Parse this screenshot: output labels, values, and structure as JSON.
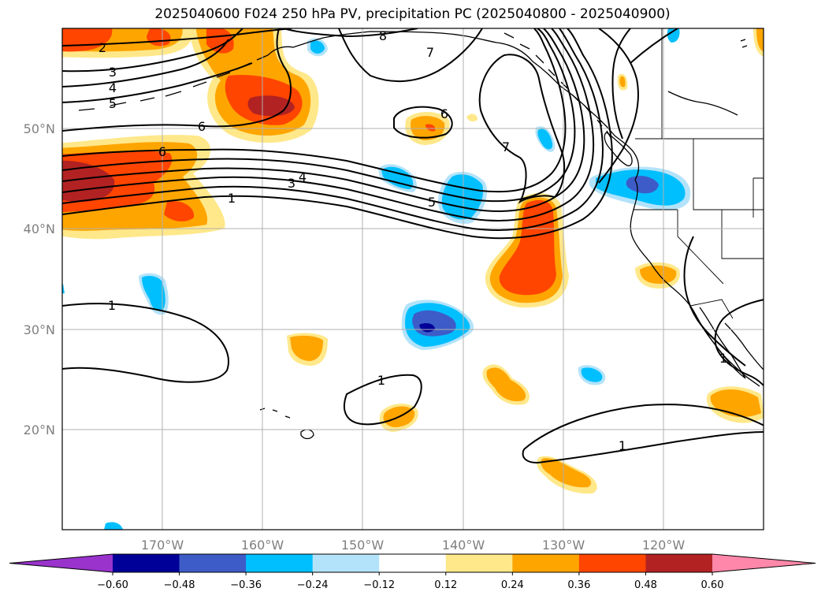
{
  "title": "2025040600 F024 250 hPa PV, precipitation PC (2025040800 - 2025040900)",
  "map": {
    "lon_ticks": [
      "170°W",
      "160°W",
      "150°W",
      "140°W",
      "130°W",
      "120°W"
    ],
    "lat_ticks": [
      "50°N",
      "40°N",
      "30°N",
      "20°N"
    ],
    "pv_contour_labels": [
      "2",
      "3",
      "4",
      "5",
      "6",
      "6",
      "8",
      "7",
      "6",
      "7",
      "4",
      "3",
      "1",
      "5",
      "1",
      "1",
      "1",
      "1"
    ]
  },
  "colorbar": {
    "ticks": [
      "−0.60",
      "−0.48",
      "−0.36",
      "−0.24",
      "−0.12",
      "0.12",
      "0.24",
      "0.36",
      "0.48",
      "0.60"
    ],
    "colors": [
      "#9933cc",
      "#000099",
      "#3d5cc8",
      "#00bfff",
      "#b3e3fa",
      "#ffffff",
      "#ffe88a",
      "#ffa500",
      "#ff4500",
      "#b22222",
      "#ff88aa"
    ]
  },
  "chart_data": {
    "type": "map",
    "variables": [
      "250 hPa PV",
      "precipitation PC"
    ],
    "pv_contour_levels": [
      1,
      2,
      3,
      4,
      5,
      6,
      7,
      8
    ],
    "pc_levels": [
      -0.6,
      -0.48,
      -0.36,
      -0.24,
      -0.12,
      0.12,
      0.24,
      0.36,
      0.48,
      0.6
    ],
    "extent": {
      "lon": [
        -180,
        -110
      ],
      "lat": [
        10,
        60
      ]
    },
    "grid": true
  }
}
